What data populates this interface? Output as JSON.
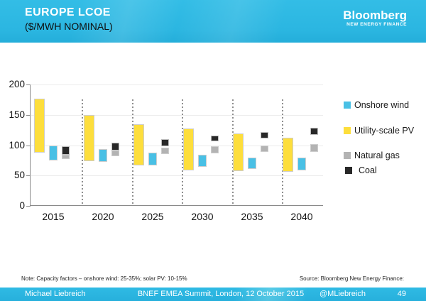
{
  "slide": {
    "title_line1": "EUROPE LCOE",
    "title_line2": "($/MWH NOMINAL)",
    "logo": {
      "name": "Bloomberg",
      "sub": "NEW ENERGY FINANCE"
    },
    "note": "Note: Capacity factors – onshore wind: 25-35%; solar PV: 10-15%",
    "source": "Source: Bloomberg New Energy Finance:",
    "footer": {
      "left": "Michael Liebreich",
      "center": "BNEF EMEA Summit, London, 12 October 2015",
      "handle": "@MLiebreich",
      "page": "49"
    }
  },
  "colors": {
    "accent_cyan": "#2BB6E1",
    "axis": "#8A8A8A",
    "gridline": "#ECECEC",
    "bar_outline": "#CDCDCD"
  },
  "chart_data": {
    "type": "bar",
    "bar_style": "floating-range",
    "title": "EUROPE LCOE ($/MWH NOMINAL)",
    "xlabel": "",
    "ylabel": "",
    "categories": [
      "2015",
      "2020",
      "2025",
      "2030",
      "2035",
      "2040"
    ],
    "ylim": [
      0,
      200
    ],
    "yticks": [
      0,
      50,
      100,
      150,
      200
    ],
    "grid": true,
    "legend_position": "right",
    "series": [
      {
        "name": "Onshore wind",
        "color": "#49C0E5",
        "ranges": [
          [
            75,
            99
          ],
          [
            72,
            93
          ],
          [
            67,
            88
          ],
          [
            64,
            84
          ],
          [
            61,
            80
          ],
          [
            58,
            79
          ]
        ]
      },
      {
        "name": "Utility-scale PV",
        "color": "#FDDE3C",
        "ranges": [
          [
            88,
            177
          ],
          [
            74,
            150
          ],
          [
            67,
            135
          ],
          [
            59,
            127
          ],
          [
            57,
            119
          ],
          [
            56,
            112
          ]
        ]
      },
      {
        "name": "Natural gas",
        "color": "#B3B3B3",
        "ranges": [
          [
            77,
            84
          ],
          [
            82,
            91
          ],
          [
            85,
            96
          ],
          [
            87,
            98
          ],
          [
            89,
            100
          ],
          [
            89,
            102
          ]
        ]
      },
      {
        "name": "Coal",
        "color": "#282828",
        "ranges": [
          [
            84,
            98
          ],
          [
            91,
            104
          ],
          [
            98,
            110
          ],
          [
            106,
            116
          ],
          [
            111,
            122
          ],
          [
            117,
            129
          ]
        ]
      }
    ]
  }
}
